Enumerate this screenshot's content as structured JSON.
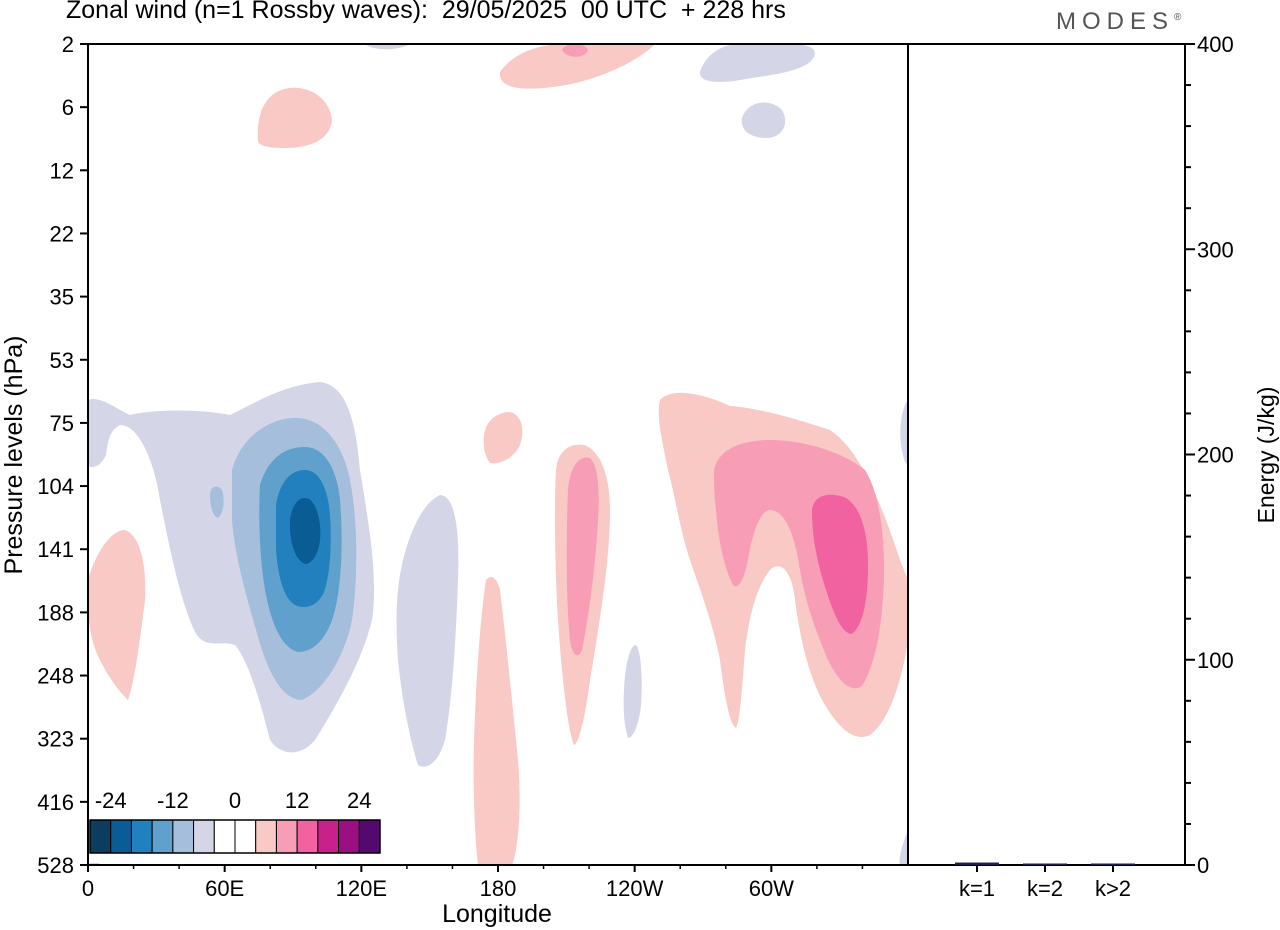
{
  "header": {
    "title": "Zonal wind (n=1 Rossby waves):  29/05/2025  00 UTC  + 228 hrs",
    "brand": "MODES",
    "brand_mark": "®"
  },
  "chart_data": [
    {
      "type": "contour",
      "title": "Zonal wind (n=1 Rossby waves):  29/05/2025  00 UTC  + 228 hrs",
      "xlabel": "Longitude",
      "ylabel": "Pressure levels (hPa)",
      "x_ticks": [
        "0",
        "60E",
        "120E",
        "180",
        "120W",
        "60W"
      ],
      "y_ticks": [
        "2",
        "6",
        "12",
        "22",
        "35",
        "53",
        "75",
        "104",
        "141",
        "188",
        "248",
        "323",
        "416",
        "528"
      ],
      "colorbar": {
        "labels": [
          "-24",
          "-12",
          "0",
          "12",
          "24"
        ],
        "colors": [
          "#0c3d5e",
          "#0a5c94",
          "#2180bd",
          "#5fa0cd",
          "#a4bedc",
          "#d4d6e8",
          "#ffffff",
          "#ffffff",
          "#f9c9c6",
          "#f79db5",
          "#f162a0",
          "#c8218c",
          "#9c0f84",
          "#54096e"
        ]
      },
      "fill_colors": {
        "neg1": "#d4d6e8",
        "neg2": "#a4bedc",
        "neg3": "#5fa0cd",
        "neg4": "#2180bd",
        "neg5": "#0a5c94",
        "pos1": "#f9c9c6",
        "pos2": "#f79db5",
        "pos3": "#f162a0"
      }
    },
    {
      "type": "bar",
      "ylabel": "Energy (J/kg)",
      "categories": [
        "k=1",
        "k=2",
        "k>2"
      ],
      "values": [
        1.2,
        0.3,
        0.6
      ],
      "ylim": [
        0,
        400
      ],
      "y_ticks": [
        "0",
        "100",
        "200",
        "300",
        "400"
      ],
      "bar_color": "#1f1f4f"
    }
  ]
}
